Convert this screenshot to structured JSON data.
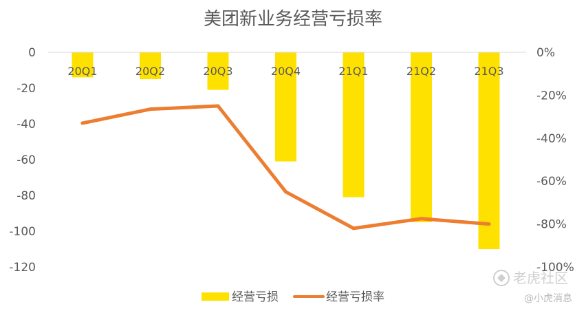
{
  "chart_data": {
    "type": "bar+line",
    "title": "美团新业务经营亏损率",
    "categories": [
      "20Q1",
      "20Q2",
      "20Q3",
      "20Q4",
      "21Q1",
      "21Q2",
      "21Q3"
    ],
    "left_axis": {
      "ylim": [
        -120,
        0
      ],
      "ticks": [
        "0",
        "-20",
        "-40",
        "-60",
        "-80",
        "-100",
        "-120"
      ]
    },
    "right_axis": {
      "ylim": [
        -100,
        0
      ],
      "ticks": [
        "0%",
        "-20%",
        "-40%",
        "-60%",
        "-80%",
        "-100%"
      ]
    },
    "series": [
      {
        "name": "经营亏损",
        "type": "bar",
        "axis": "left",
        "values": [
          -14,
          -15,
          -21,
          -61,
          -81,
          -95,
          -110
        ],
        "color": "#FFE100"
      },
      {
        "name": "经营亏损率",
        "type": "line",
        "axis": "right",
        "values": [
          -33,
          -26.5,
          -25,
          -65,
          -82,
          -77.5,
          -80
        ],
        "color": "#ED7D31"
      }
    ],
    "legend_position": "bottom-center",
    "grid": false
  },
  "watermark": {
    "brand": "老虎社区",
    "handle": "@小虎消息"
  }
}
